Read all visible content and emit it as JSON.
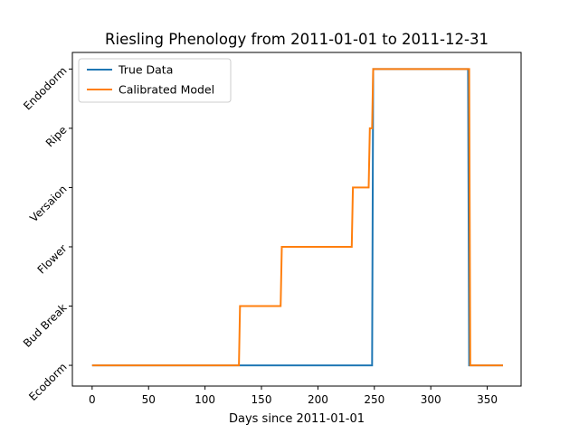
{
  "chart_data": {
    "type": "line",
    "title": "Riesling Phenology from 2011-01-01 to 2011-12-31",
    "xlabel": "Days since 2011-01-01",
    "ylabel": "",
    "xlim": [
      -17.5,
      380
    ],
    "ylim": [
      -0.35,
      5.28
    ],
    "x_ticks": [
      0,
      50,
      100,
      150,
      200,
      250,
      300,
      350
    ],
    "y_categories": [
      "Ecodorm",
      "Bud Break",
      "Flower",
      "Versaion",
      "Ripe",
      "Endodorm"
    ],
    "grid": false,
    "legend_position": "top-left",
    "series": [
      {
        "name": "True Data",
        "color": "#1f77b4",
        "points": [
          [
            0,
            0
          ],
          [
            248,
            0
          ],
          [
            249,
            5
          ],
          [
            333,
            5
          ],
          [
            334,
            0
          ],
          [
            364,
            0
          ]
        ]
      },
      {
        "name": "Calibrated Model",
        "color": "#ff7f0e",
        "points": [
          [
            0,
            0
          ],
          [
            130,
            0
          ],
          [
            131,
            1
          ],
          [
            167,
            1
          ],
          [
            168,
            2
          ],
          [
            230,
            2
          ],
          [
            231,
            3
          ],
          [
            245,
            3
          ],
          [
            246,
            4
          ],
          [
            248,
            4
          ],
          [
            249,
            5
          ],
          [
            334,
            5
          ],
          [
            335,
            0
          ],
          [
            364,
            0
          ]
        ]
      }
    ]
  }
}
